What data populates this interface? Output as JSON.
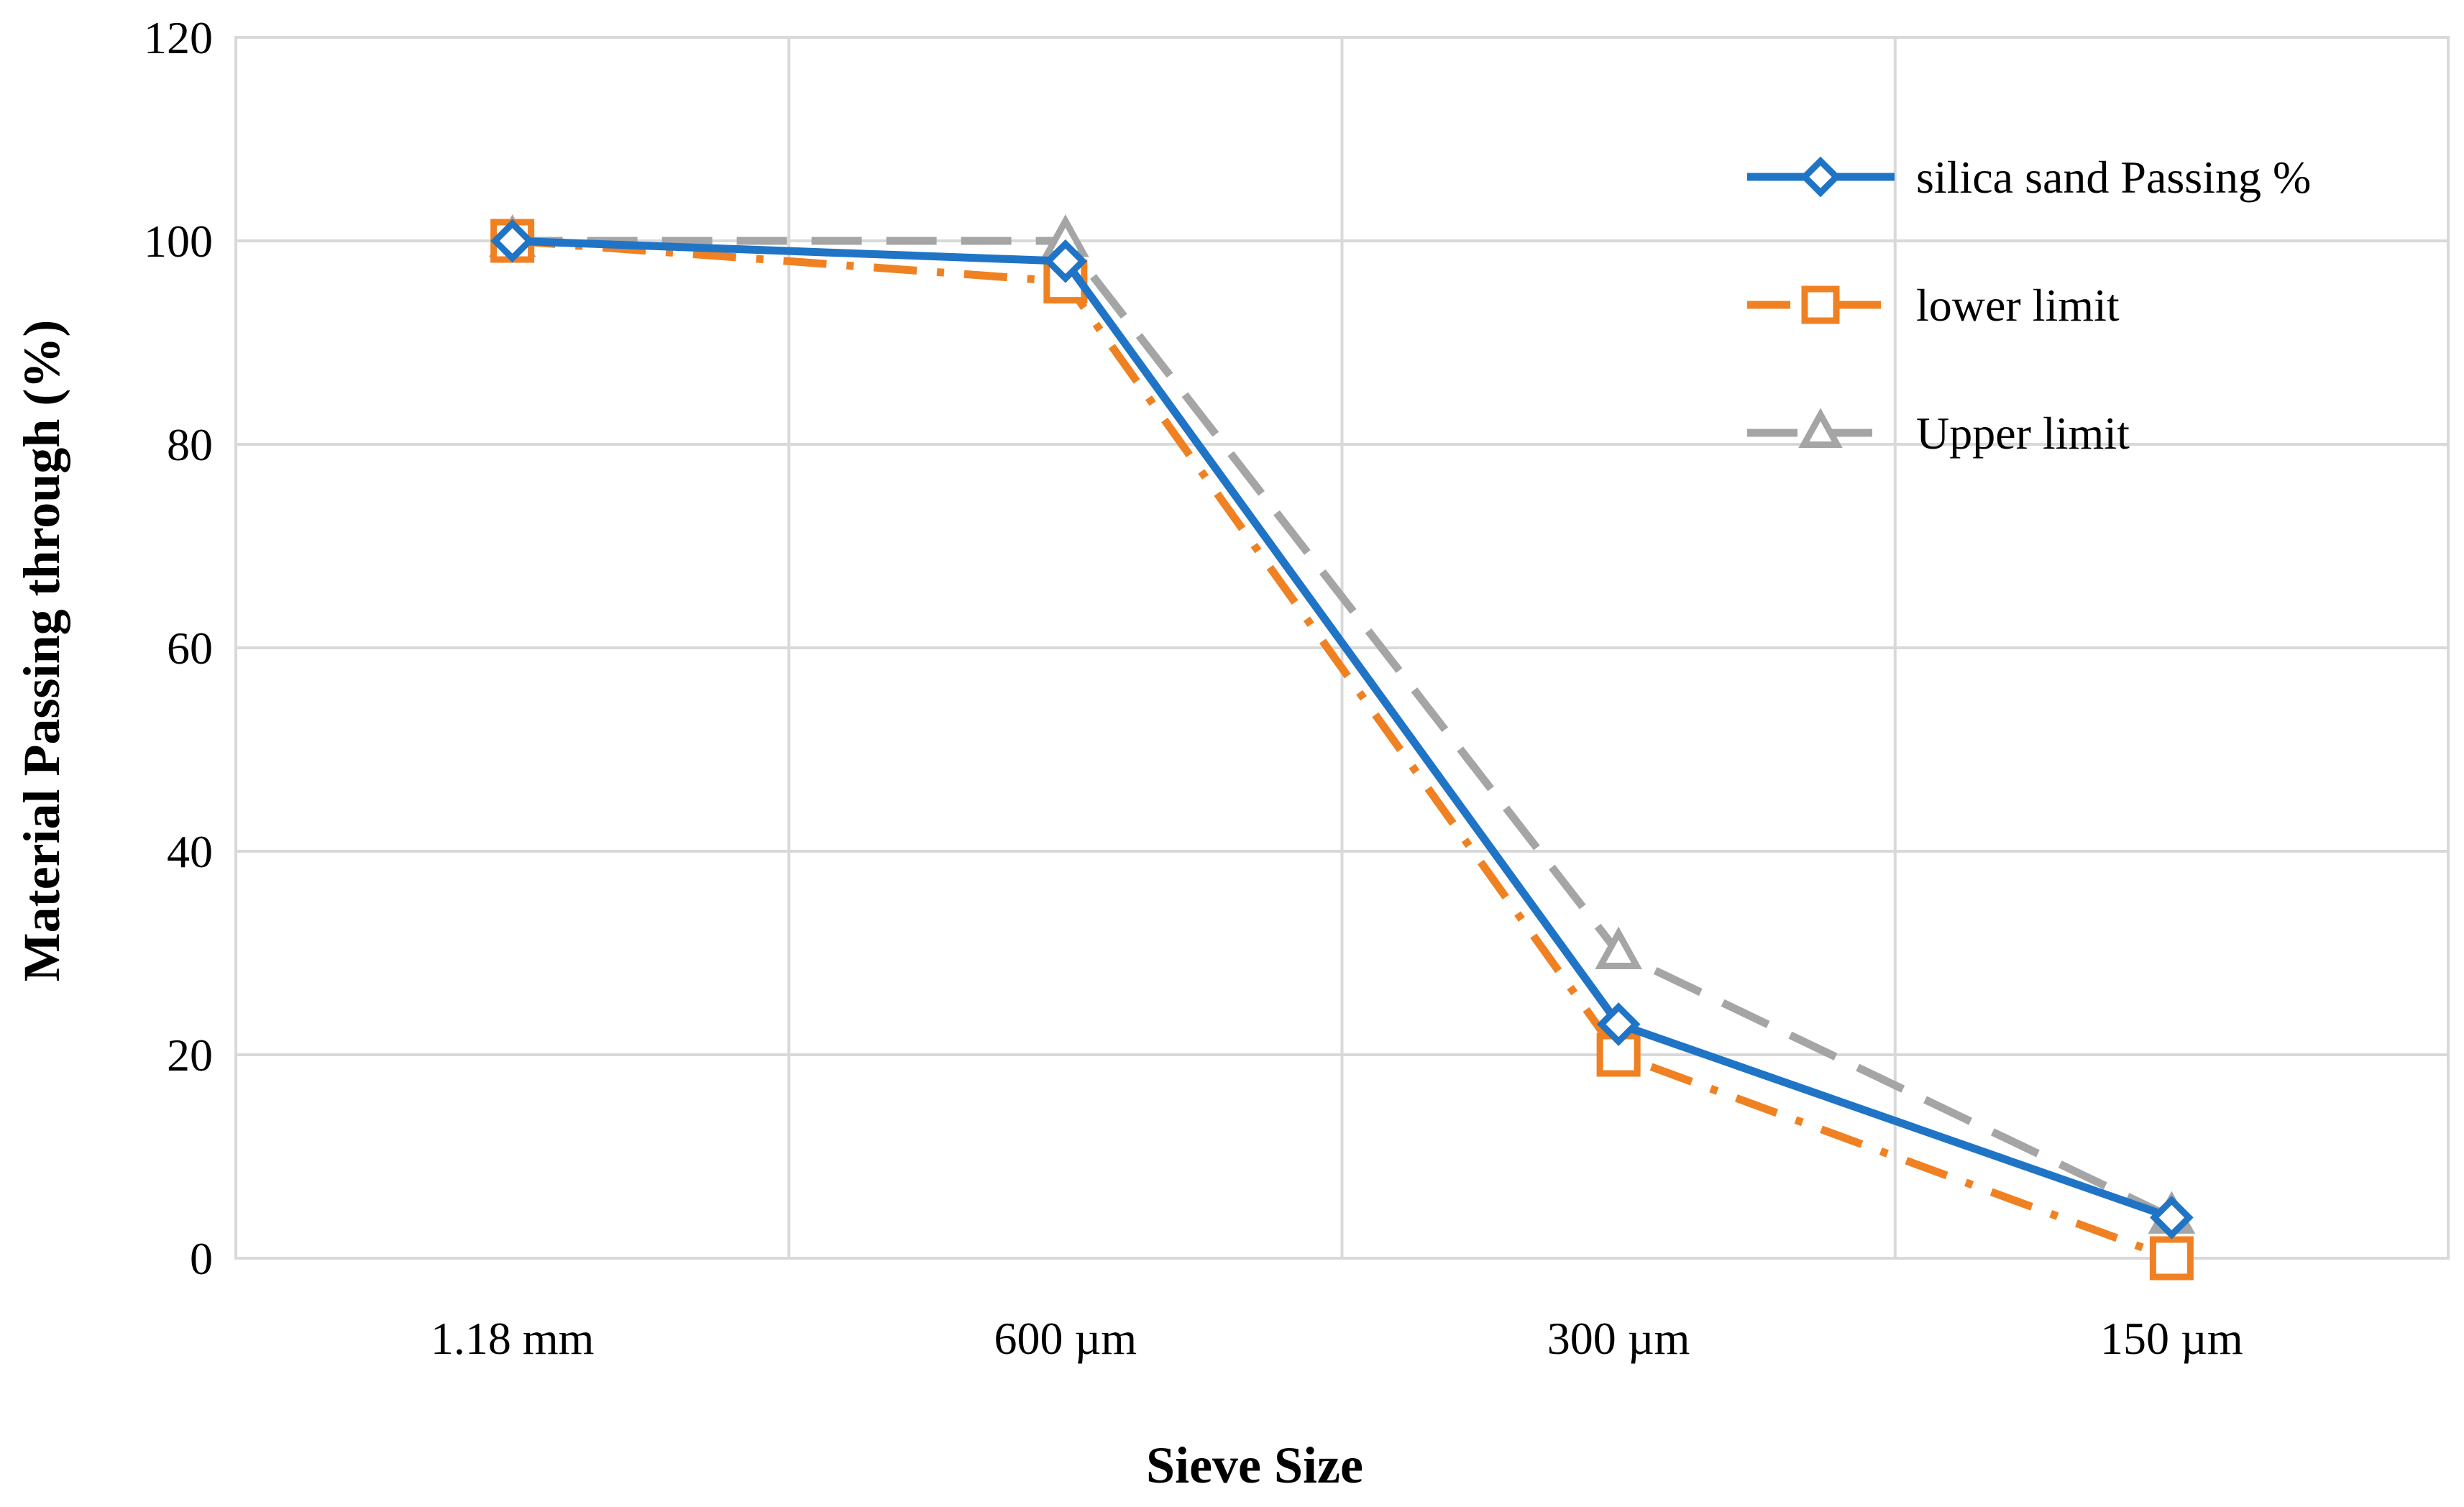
{
  "chart_data": {
    "type": "line",
    "title": "",
    "xlabel": "Sieve Size",
    "ylabel": "Material Passing through (%)",
    "categories": [
      "1.18 mm",
      "600 µm",
      "300 µm",
      "150 µm"
    ],
    "ylim": [
      0,
      120
    ],
    "yticks": [
      0,
      20,
      40,
      60,
      80,
      100,
      120
    ],
    "grid": true,
    "legend_position": "top-right",
    "series": [
      {
        "name": "silica sand Passing %",
        "values": [
          100,
          98,
          23,
          4
        ],
        "color": "#1f74c6",
        "marker": "diamond",
        "dash": "solid"
      },
      {
        "name": "lower limit",
        "values": [
          100,
          96,
          20,
          0
        ],
        "color": "#f08122",
        "marker": "square",
        "dash": "dashdot"
      },
      {
        "name": "Upper limit",
        "values": [
          100,
          100,
          30,
          4
        ],
        "color": "#a5a5a5",
        "marker": "triangle",
        "dash": "dash"
      }
    ]
  }
}
